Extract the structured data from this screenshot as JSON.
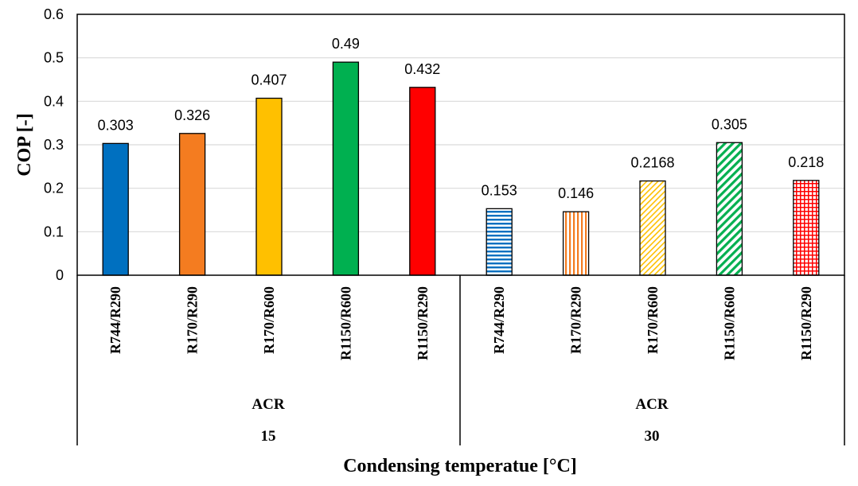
{
  "chart_data": {
    "type": "bar",
    "title": "",
    "ylabel": "COP [-]",
    "xlabel": "Condensing temperatue [°C]",
    "ylim": [
      0,
      0.6
    ],
    "yticks": [
      0,
      0.1,
      0.2,
      0.3,
      0.4,
      0.5,
      0.6
    ],
    "ytick_labels": [
      "0",
      "0.1",
      "0.2",
      "0.3",
      "0.4",
      "0.5",
      "0.6"
    ],
    "grid": true,
    "legend": "none",
    "groups": [
      {
        "label": "ACR",
        "temperature": "15",
        "bars": [
          {
            "category": "R744/R290",
            "value": 0.303,
            "label": "0.303",
            "color": "#0070C0",
            "pattern": "solid"
          },
          {
            "category": "R170/R290",
            "value": 0.326,
            "label": "0.326",
            "color": "#F47C20",
            "pattern": "solid"
          },
          {
            "category": "R170/R600",
            "value": 0.407,
            "label": "0.407",
            "color": "#FFC000",
            "pattern": "solid"
          },
          {
            "category": "R1150/R600",
            "value": 0.49,
            "label": "0.49",
            "color": "#00B050",
            "pattern": "solid"
          },
          {
            "category": "R1150/R290",
            "value": 0.432,
            "label": "0.432",
            "color": "#FF0000",
            "pattern": "solid"
          }
        ]
      },
      {
        "label": "ACR",
        "temperature": "30",
        "bars": [
          {
            "category": "R744/R290",
            "value": 0.153,
            "label": "0.153",
            "color": "#0070C0",
            "pattern": "horizontal-lines"
          },
          {
            "category": "R170/R290",
            "value": 0.146,
            "label": "0.146",
            "color": "#F47C20",
            "pattern": "vertical-lines"
          },
          {
            "category": "R170/R600",
            "value": 0.2168,
            "label": "0.2168",
            "color": "#FFC000",
            "pattern": "diagonal-light"
          },
          {
            "category": "R1150/R600",
            "value": 0.305,
            "label": "0.305",
            "color": "#00B050",
            "pattern": "diagonal-wide"
          },
          {
            "category": "R1150/R290",
            "value": 0.218,
            "label": "0.218",
            "color": "#FF0000",
            "pattern": "grid"
          }
        ]
      }
    ]
  }
}
